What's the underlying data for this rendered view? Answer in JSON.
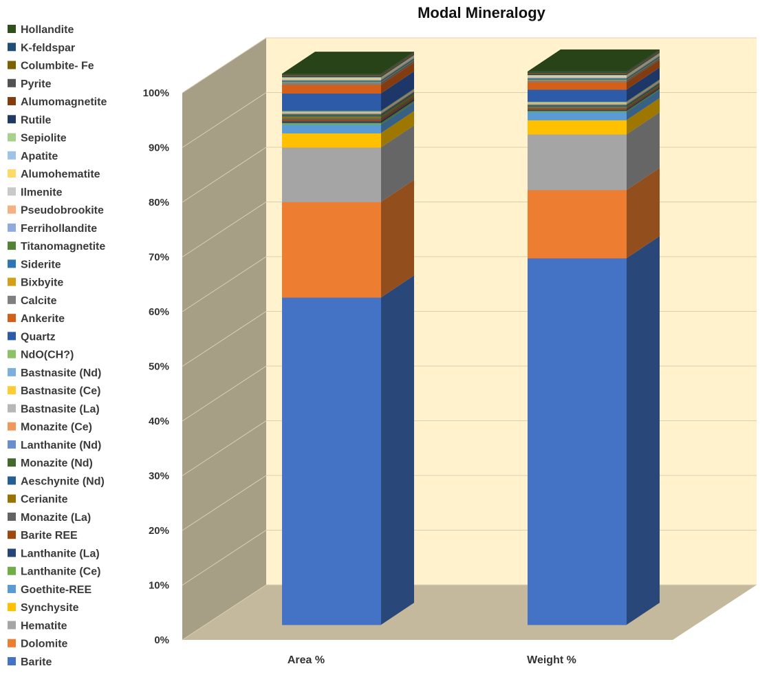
{
  "chart_data": {
    "type": "bar",
    "stacked": true,
    "three_d": true,
    "title": "Modal Mineralogy",
    "xlabel": "",
    "ylabel": "",
    "ylim": [
      0,
      100
    ],
    "y_ticks": [
      "0%",
      "10%",
      "20%",
      "30%",
      "40%",
      "50%",
      "60%",
      "70%",
      "80%",
      "90%",
      "100%"
    ],
    "legend_position": "left",
    "grid": true,
    "categories": [
      "Area %",
      "Weight %"
    ],
    "series": [
      {
        "name": "Barite",
        "color": "#4472c4",
        "values": [
          60.0,
          67.2
        ]
      },
      {
        "name": "Dolomite",
        "color": "#ed7d31",
        "values": [
          17.5,
          12.5
        ]
      },
      {
        "name": "Hematite",
        "color": "#a5a5a5",
        "values": [
          10.0,
          10.2
        ]
      },
      {
        "name": "Synchysite",
        "color": "#ffc000",
        "values": [
          2.6,
          2.6
        ]
      },
      {
        "name": "Goethite-REE",
        "color": "#5b9bd5",
        "values": [
          1.6,
          1.5
        ]
      },
      {
        "name": "Lanthanite (Ce)",
        "color": "#70ad47",
        "values": [
          0.3,
          0.2
        ]
      },
      {
        "name": "Lanthanite (La)",
        "color": "#264478",
        "values": [
          0.3,
          0.2
        ]
      },
      {
        "name": "Barite REE",
        "color": "#9e480e",
        "values": [
          0.3,
          0.2
        ]
      },
      {
        "name": "Monazite (La)",
        "color": "#636363",
        "values": [
          0.3,
          0.2
        ]
      },
      {
        "name": "Cerianite",
        "color": "#997300",
        "values": [
          0.3,
          0.2
        ]
      },
      {
        "name": "Aeschynite (Nd)",
        "color": "#255e91",
        "values": [
          0.2,
          0.2
        ]
      },
      {
        "name": "Monazite (Nd)",
        "color": "#43682b",
        "values": [
          0.2,
          0.1
        ]
      },
      {
        "name": "Lanthanite (Nd)",
        "color": "#698ed0",
        "values": [
          0.1,
          0.1
        ]
      },
      {
        "name": "Monazite (Ce)",
        "color": "#f1975a",
        "values": [
          0.1,
          0.1
        ]
      },
      {
        "name": "Bastnasite (La)",
        "color": "#b7b7b7",
        "values": [
          0.1,
          0.1
        ]
      },
      {
        "name": "Bastnasite (Ce)",
        "color": "#ffcd33",
        "values": [
          0.1,
          0.1
        ]
      },
      {
        "name": "Bastnasite (Nd)",
        "color": "#7cafdd",
        "values": [
          0.1,
          0.1
        ]
      },
      {
        "name": "NdO(CH?)",
        "color": "#8cc168",
        "values": [
          0.1,
          0.1
        ]
      },
      {
        "name": "Quartz",
        "color": "#2e5ba8",
        "values": [
          3.2,
          2.2
        ]
      },
      {
        "name": "Ankerite",
        "color": "#d2601a",
        "values": [
          1.6,
          1.4
        ]
      },
      {
        "name": "Calcite",
        "color": "#7f7f7f",
        "values": [
          0.4,
          0.3
        ]
      },
      {
        "name": "Bixbyite",
        "color": "#d4a017",
        "values": [
          0.1,
          0.1
        ]
      },
      {
        "name": "Siderite",
        "color": "#2e75b6",
        "values": [
          0.2,
          0.2
        ]
      },
      {
        "name": "Titanomagnetite",
        "color": "#548235",
        "values": [
          0.1,
          0.1
        ]
      },
      {
        "name": "Ferrihollandite",
        "color": "#8faadc",
        "values": [
          0.1,
          0.1
        ]
      },
      {
        "name": "Pseudobrookite",
        "color": "#f4b183",
        "values": [
          0.1,
          0.1
        ]
      },
      {
        "name": "Ilmenite",
        "color": "#c9c9c9",
        "values": [
          0.1,
          0.1
        ]
      },
      {
        "name": "Alumohematite",
        "color": "#ffd966",
        "values": [
          0.1,
          0.1
        ]
      },
      {
        "name": "Apatite",
        "color": "#9dc3e6",
        "values": [
          0.1,
          0.1
        ]
      },
      {
        "name": "Sepiolite",
        "color": "#a9d18e",
        "values": [
          0.1,
          0.1
        ]
      },
      {
        "name": "Rutile",
        "color": "#1f3864",
        "values": [
          0.1,
          0.1
        ]
      },
      {
        "name": "Alumomagnetite",
        "color": "#843c0c",
        "values": [
          0.1,
          0.1
        ]
      },
      {
        "name": "Pyrite",
        "color": "#525252",
        "values": [
          0.1,
          0.1
        ]
      },
      {
        "name": "Columbite- Fe",
        "color": "#7f6000",
        "values": [
          0.1,
          0.1
        ]
      },
      {
        "name": "K-feldspar",
        "color": "#1f4e79",
        "values": [
          0.1,
          0.1
        ]
      },
      {
        "name": "Hollandite",
        "color": "#2f4f1c",
        "values": [
          0.1,
          0.1
        ]
      }
    ]
  }
}
